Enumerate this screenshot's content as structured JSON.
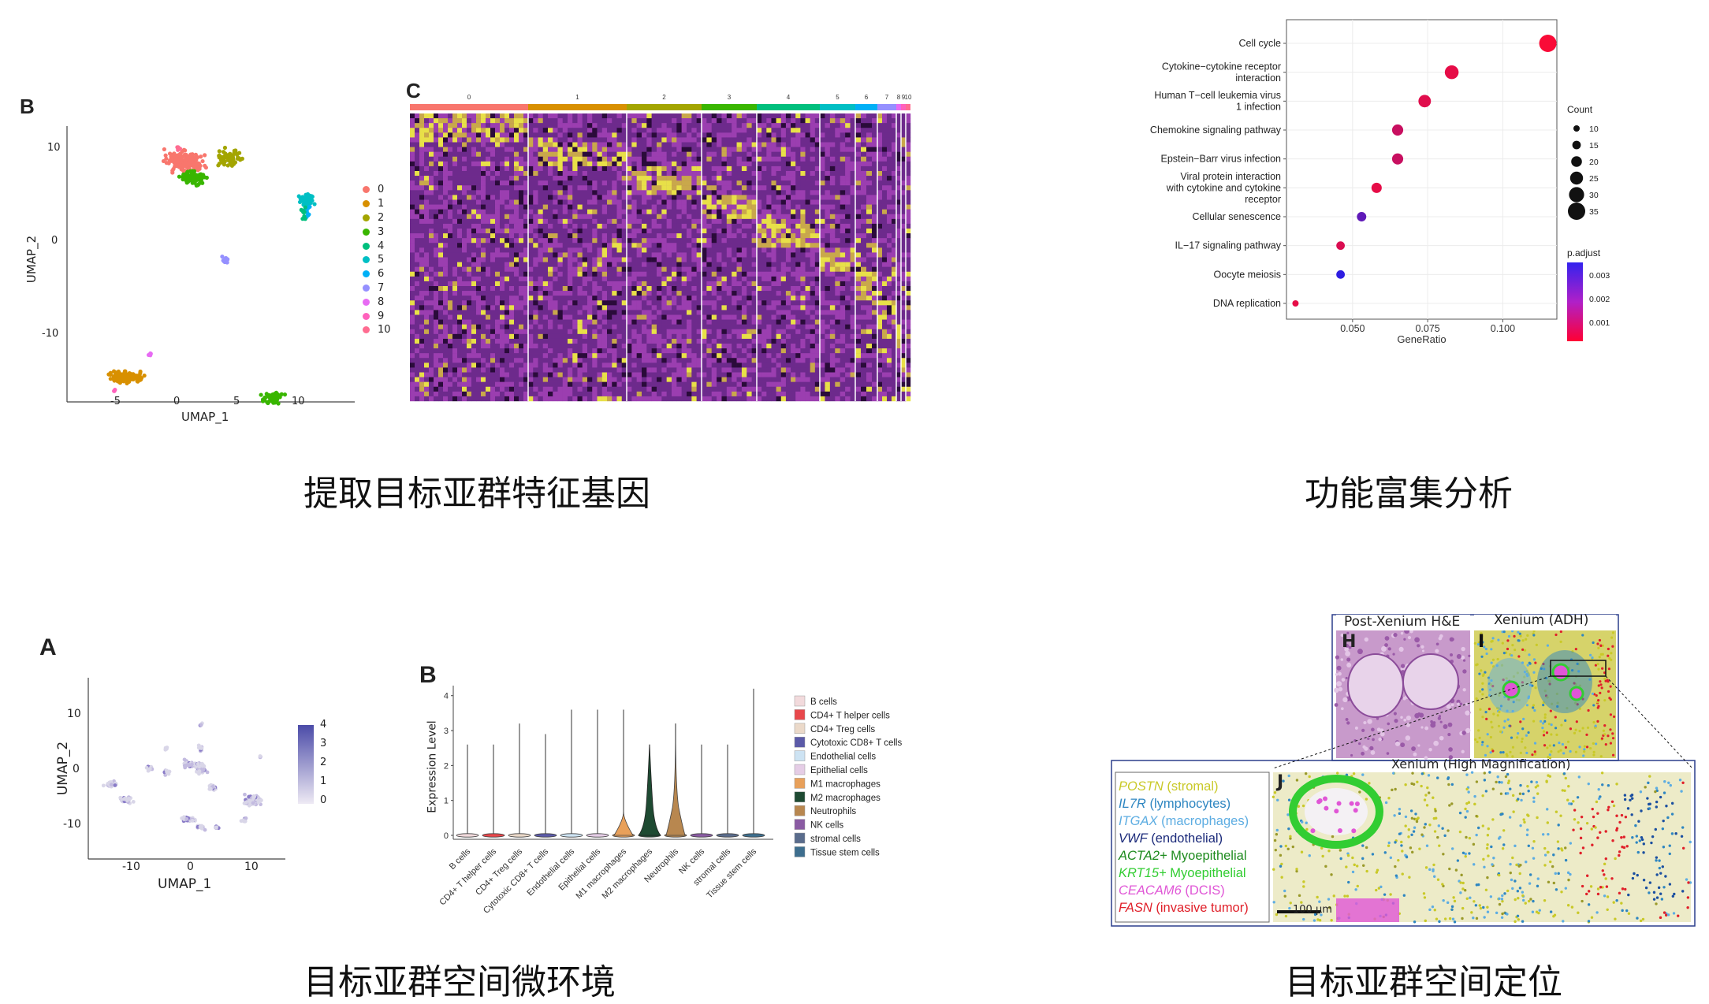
{
  "captions": {
    "q1": "提取目标亚群特征基因",
    "q2": "功能富集分析",
    "q3": "目标亚群空间微环境",
    "q4": "目标亚群空间定位"
  },
  "umap_clusters": {
    "panel_label": "B",
    "x_label": "UMAP_1",
    "y_label": "UMAP_2",
    "x_ticks": [
      "-5",
      "0",
      "5",
      "10"
    ],
    "y_ticks": [
      "10",
      "0",
      "-10"
    ],
    "legend": [
      {
        "label": "0",
        "color": "#F8766D"
      },
      {
        "label": "1",
        "color": "#D89000"
      },
      {
        "label": "2",
        "color": "#A3A500"
      },
      {
        "label": "3",
        "color": "#39B600"
      },
      {
        "label": "4",
        "color": "#00BF7D"
      },
      {
        "label": "5",
        "color": "#00BFC4"
      },
      {
        "label": "6",
        "color": "#00B0F6"
      },
      {
        "label": "7",
        "color": "#9590FF"
      },
      {
        "label": "8",
        "color": "#E76BF3"
      },
      {
        "label": "9",
        "color": "#FF62BC"
      },
      {
        "label": "10",
        "color": "#FF6C91"
      }
    ]
  },
  "heatmap": {
    "panel_label": "C",
    "cluster_labels": [
      "0",
      "1",
      "2",
      "3",
      "4",
      "5",
      "6",
      "7",
      "8",
      "9",
      "10"
    ]
  },
  "chart_data": {
    "type": "scatter",
    "title": "",
    "xlabel": "GeneRatio",
    "ylabel": "",
    "x_ticks": [
      "0.050",
      "0.075",
      "0.100"
    ],
    "xlim": [
      0.028,
      0.118
    ],
    "categories": [
      "Cell cycle",
      "Cytokine-cytokine receptor interaction",
      "Human T-cell leukemia virus 1 infection",
      "Chemokine signaling pathway",
      "Epstein-Barr virus infection",
      "Viral protein interaction with cytokine and cytokine receptor",
      "Cellular senescence",
      "IL-17 signaling pathway",
      "Oocyte meiosis",
      "DNA replication"
    ],
    "category_lines": [
      [
        "Cell cycle"
      ],
      [
        "Cytokine−cytokine receptor",
        "interaction"
      ],
      [
        "Human T−cell leukemia virus",
        "1 infection"
      ],
      [
        "Chemokine signaling pathway"
      ],
      [
        "Epstein−Barr virus infection"
      ],
      [
        "Viral protein interaction",
        "with cytokine and cytokine",
        "receptor"
      ],
      [
        "Cellular senescence"
      ],
      [
        "IL−17 signaling pathway"
      ],
      [
        "Oocyte meiosis"
      ],
      [
        "DNA replication"
      ]
    ],
    "gene_ratio": [
      0.115,
      0.083,
      0.074,
      0.065,
      0.065,
      0.058,
      0.053,
      0.046,
      0.046,
      0.031
    ],
    "count": [
      35,
      27,
      24,
      21,
      21,
      19,
      17,
      15,
      15,
      10
    ],
    "p_adjust": [
      0.0001,
      0.0004,
      0.0005,
      0.0009,
      0.0009,
      0.0004,
      0.0026,
      0.0006,
      0.0034,
      0.0004
    ],
    "size_legend": {
      "title": "Count",
      "values": [
        10,
        15,
        20,
        25,
        30,
        35
      ]
    },
    "color_legend": {
      "title": "p.adjust",
      "ticks": [
        "0.003",
        "0.002",
        "0.001"
      ],
      "low_color": "#FF0033",
      "high_color": "#3322EE"
    }
  },
  "umap_expr": {
    "panel_label": "A",
    "x_label": "UMAP_1",
    "y_label": "UMAP_2",
    "x_ticks": [
      "-10",
      "0",
      "10"
    ],
    "y_ticks": [
      "10",
      "0",
      "-10"
    ],
    "colorbar_ticks": [
      "4",
      "3",
      "2",
      "1",
      "0"
    ]
  },
  "violin": {
    "panel_label": "B",
    "y_label": "Expression Level",
    "y_ticks": [
      "4",
      "3",
      "2",
      "1",
      "0"
    ],
    "cell_types": [
      {
        "label": "B cells",
        "color": "#F2DADC",
        "max": 2.6
      },
      {
        "label": "CD4+ T helper cells",
        "color": "#E8474B",
        "max": 2.6
      },
      {
        "label": "CD4+ Treg cells",
        "color": "#EBD9C9",
        "max": 3.2
      },
      {
        "label": "Cytotoxic CD8+ T cells",
        "color": "#5B5AA8",
        "max": 2.9
      },
      {
        "label": "Endothelial cells",
        "color": "#CDE3F3",
        "max": 3.6
      },
      {
        "label": "Epithelial cells",
        "color": "#E5CDE6",
        "max": 3.6
      },
      {
        "label": "M1 macrophages",
        "color": "#E8A05A",
        "max": 3.6
      },
      {
        "label": "M2 macrophages",
        "color": "#1E4A32",
        "max": 2.6
      },
      {
        "label": "Neutrophils",
        "color": "#B8874F",
        "max": 3.2
      },
      {
        "label": "NK cells",
        "color": "#8A5BA3",
        "max": 2.6
      },
      {
        "label": "stromal cells",
        "color": "#5A6C8C",
        "max": 2.6
      },
      {
        "label": "Tissue stem cells",
        "color": "#3D6E8E",
        "max": 4.2
      }
    ]
  },
  "xenium": {
    "title_he": "Post-Xenium H&E",
    "title_xen": "Xenium (ADH)",
    "title_high": "Xenium (High Magnification)",
    "label_h": "H",
    "label_i": "I",
    "label_j": "J",
    "scale_bar": "100 μm",
    "markers": [
      {
        "gene": "POSTN",
        "desc": " (stromal)",
        "color": "#C9C928",
        "italic": true
      },
      {
        "gene": "IL7R",
        "desc": " (lymphocytes)",
        "color": "#2E86C1",
        "italic": true
      },
      {
        "gene": "ITGAX",
        "desc": " (macrophages)",
        "color": "#5DADE2",
        "italic": true
      },
      {
        "gene": "VWF",
        "desc": " (endothelial)",
        "color": "#1B2A7A",
        "italic": true
      },
      {
        "gene": "ACTA2+",
        "desc": " Myoepithelial",
        "color": "#1E8B1E",
        "italic": true
      },
      {
        "gene": "KRT15+",
        "desc": " Myoepithelial",
        "color": "#32CD32",
        "italic": true
      },
      {
        "gene": "CEACAM6",
        "desc": " (DCIS)",
        "color": "#E056D6",
        "italic": true
      },
      {
        "gene": "FASN",
        "desc": " (invasive tumor)",
        "color": "#E0202A",
        "italic": true
      }
    ]
  }
}
